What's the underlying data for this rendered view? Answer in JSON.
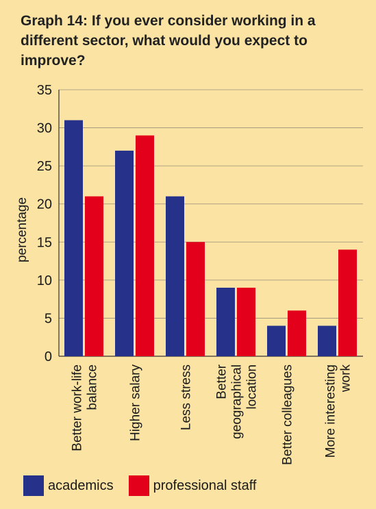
{
  "chart_data": {
    "type": "bar",
    "title": "Graph 14: If you ever consider working in a different sector, what would you expect to improve?",
    "xlabel": "",
    "ylabel": "percentage",
    "ylim": [
      0,
      35
    ],
    "yticks": [
      0,
      5,
      10,
      15,
      20,
      25,
      30,
      35
    ],
    "grid": true,
    "legend_position": "bottom",
    "categories": [
      [
        "Better work-life",
        "balance"
      ],
      [
        "Higher salary"
      ],
      [
        "Less stress"
      ],
      [
        "Better",
        "geographical",
        "location"
      ],
      [
        "Better colleagues"
      ],
      [
        "More interesting",
        "work"
      ]
    ],
    "series": [
      {
        "name": "academics",
        "color": "#26328a",
        "values": [
          31,
          27,
          21,
          9,
          4,
          4
        ]
      },
      {
        "name": "professional staff",
        "color": "#e3001b",
        "values": [
          21,
          29,
          15,
          9,
          6,
          14
        ]
      }
    ]
  }
}
